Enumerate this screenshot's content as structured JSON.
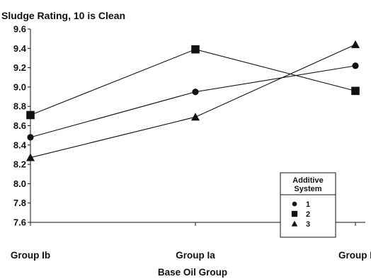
{
  "chart_data": {
    "type": "line",
    "title": "Sludge Rating, 10 is Clean",
    "xlabel": "Base Oil Group",
    "ylabel": "",
    "categories": [
      "Group Ib",
      "Group Ia",
      "Group I"
    ],
    "y_ticks": [
      "9.6",
      "9.4",
      "9.2",
      "9.0",
      "8.8",
      "8.6",
      "8.4",
      "8.2",
      "8.0",
      "7.8",
      "7.6"
    ],
    "ylim": [
      7.6,
      9.6
    ],
    "grid": false,
    "legend": {
      "title_line1": "Additive",
      "title_line2": "System",
      "placement": "lower-right"
    },
    "series": [
      {
        "name": "1",
        "marker": "circle",
        "values": [
          8.48,
          8.95,
          9.22
        ]
      },
      {
        "name": "2",
        "marker": "square",
        "values": [
          8.71,
          9.39,
          8.96
        ]
      },
      {
        "name": "3",
        "marker": "triangle",
        "values": [
          8.27,
          8.69,
          9.44
        ]
      }
    ],
    "colors": {
      "line": "#111111",
      "marker": "#111111",
      "axis": "#111111"
    }
  }
}
